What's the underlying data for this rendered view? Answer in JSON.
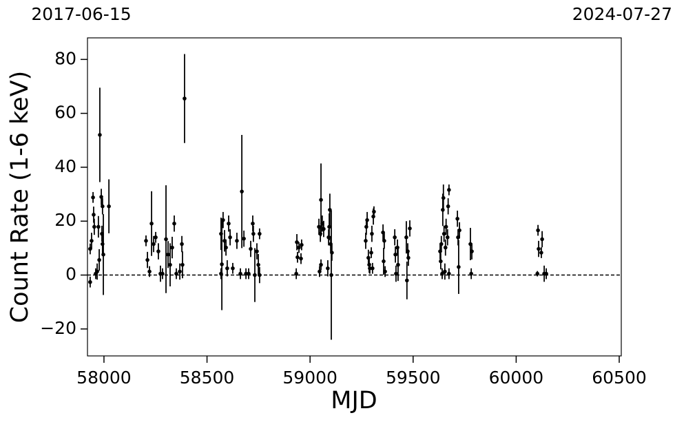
{
  "chart_data": {
    "type": "errorbar",
    "xlabel": "MJD",
    "ylabel": "Count Rate (1-6 keV)",
    "xlim": [
      57920,
      60510
    ],
    "ylim": [
      -30,
      88
    ],
    "xticks": [
      58000,
      58500,
      59000,
      59500,
      60000,
      60500
    ],
    "yticks": [
      {
        "value": -20,
        "label": "−20"
      },
      0,
      20,
      40,
      60,
      80
    ],
    "top_labels": [
      {
        "value": 57920,
        "label": "2017-06-15"
      },
      {
        "value": 60510,
        "label": "2024-07-27"
      }
    ],
    "hline": 0,
    "series": [
      {
        "color": "#000000",
        "x": [
          57933,
          57933,
          57940,
          57947,
          57950,
          57953,
          57960,
          57967,
          57973,
          57977,
          57980,
          57987,
          57990,
          57993,
          57997,
          57993,
          58024,
          58204,
          58211,
          58221,
          58231,
          58241,
          58251,
          58264,
          58274,
          58284,
          58301,
          58311,
          58321,
          58331,
          58341,
          58351,
          58368,
          58378,
          58381,
          58391,
          58568,
          58568,
          58572,
          58578,
          58585,
          58592,
          58598,
          58605,
          58612,
          58625,
          58645,
          58662,
          58669,
          58679,
          58689,
          58702,
          58712,
          58722,
          58725,
          58732,
          58742,
          58749,
          58755,
          58755,
          58933,
          58936,
          58939,
          58946,
          58956,
          58959,
          59043,
          59046,
          59050,
          59053,
          59053,
          59059,
          59066,
          59086,
          59090,
          59093,
          59096,
          59100,
          59103,
          59106,
          59270,
          59273,
          59277,
          59283,
          59287,
          59290,
          59297,
          59300,
          59303,
          59307,
          59310,
          59354,
          59357,
          59360,
          59364,
          59411,
          59414,
          59417,
          59424,
          59427,
          59467,
          59470,
          59474,
          59477,
          59484,
          59631,
          59634,
          59637,
          59641,
          59644,
          59647,
          59650,
          59654,
          59657,
          59660,
          59667,
          59670,
          59674,
          59674,
          59715,
          59718,
          59721,
          59725,
          59778,
          59782,
          59785,
          60103,
          60106,
          60109,
          60122,
          60126,
          60136,
          60146
        ],
        "values": [
          -2.6,
          9.7,
          12.7,
          28.8,
          22.4,
          17.9,
          0.5,
          1.3,
          17.9,
          5.6,
          52,
          29,
          15.3,
          25.5,
          7.6,
          11.5,
          25.5,
          12.7,
          5.6,
          1.3,
          19.1,
          11.5,
          14,
          8.8,
          0.5,
          0.5,
          13.3,
          7.6,
          3.8,
          10.2,
          19.1,
          0.5,
          1.3,
          11.5,
          3.8,
          65.5,
          15.3,
          0.5,
          4,
          20.4,
          12.7,
          10.2,
          2.5,
          19.1,
          14,
          2.5,
          12.7,
          0.5,
          31,
          13.5,
          0.5,
          0.5,
          9.7,
          19.1,
          15.3,
          0,
          8.8,
          3.8,
          15.3,
          0,
          0.5,
          12.2,
          6.6,
          10.2,
          6.1,
          11.2,
          17.9,
          1.3,
          15.3,
          27.9,
          3.8,
          19.1,
          17.1,
          2.5,
          14,
          17.9,
          24.2,
          11.5,
          0,
          8.3,
          12.7,
          17.9,
          20.4,
          6.4,
          3.8,
          2.5,
          8.3,
          15.3,
          2.5,
          21.7,
          23.5,
          15.8,
          5.1,
          12.7,
          1.3,
          14,
          7.6,
          0.5,
          10.2,
          3.8,
          14,
          -2,
          8.8,
          6.4,
          17.3,
          8.8,
          5.1,
          11.5,
          0.5,
          24.2,
          28.6,
          15.3,
          1.3,
          10.2,
          17.9,
          14,
          25.5,
          31.6,
          0.5,
          20.9,
          14,
          3,
          16.6,
          11.5,
          0.5,
          8.8,
          0.5,
          16.6,
          9.7,
          8.3,
          13.3,
          0.5,
          0.5
        ],
        "errors": [
          2,
          2,
          3,
          2,
          3,
          3,
          2,
          3,
          4,
          4,
          17.5,
          3,
          3,
          3,
          15,
          4,
          10,
          2,
          3,
          2,
          12,
          3,
          2,
          3,
          3,
          2,
          20,
          5,
          8,
          4,
          3,
          2,
          3,
          3,
          5,
          16.5,
          6,
          2,
          17,
          3,
          4,
          3,
          3,
          3,
          3,
          2,
          3,
          2,
          21,
          3,
          2,
          2,
          3,
          3,
          3,
          10,
          3,
          4,
          2,
          3,
          2,
          3,
          2,
          2,
          2,
          2,
          3,
          2,
          3,
          13.5,
          2,
          3,
          3,
          3,
          3,
          5,
          6,
          3,
          24,
          3,
          3,
          3,
          3,
          3,
          3,
          2,
          2,
          3,
          2,
          3,
          2,
          3,
          5,
          3,
          2,
          3,
          3,
          3,
          3,
          6,
          6,
          7,
          3,
          3,
          3,
          3,
          3,
          3,
          2,
          6,
          5,
          3,
          3,
          3,
          3,
          3,
          3,
          2,
          2,
          3,
          3,
          10,
          3,
          6,
          2,
          3,
          1,
          2,
          3,
          2,
          3,
          3,
          2
        ]
      }
    ]
  }
}
